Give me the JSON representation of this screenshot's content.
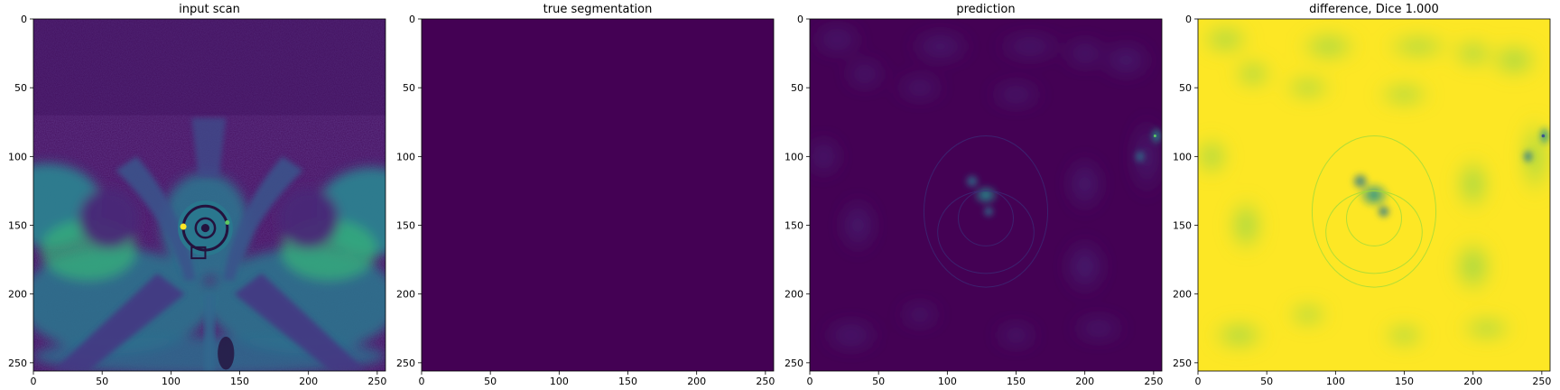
{
  "colors": {
    "viridis_dark": "#440154",
    "viridis_teal": "#21918c",
    "viridis_green": "#5ec962",
    "viridis_yellow": "#fde725",
    "axis": "#000000",
    "background": "#ffffff"
  },
  "chart_data": [
    {
      "type": "heatmap",
      "title": "input scan",
      "colormap": "viridis",
      "content": "mri-axial-pelvis",
      "xlim": [
        0,
        256
      ],
      "ylim": [
        256,
        0
      ],
      "xticks": [
        0,
        50,
        100,
        150,
        200,
        250
      ],
      "yticks": [
        0,
        50,
        100,
        150,
        200,
        250
      ],
      "grid": false
    },
    {
      "type": "heatmap",
      "title": "true segmentation",
      "colormap": "viridis",
      "content": "uniform-zero",
      "xlim": [
        0,
        256
      ],
      "ylim": [
        256,
        0
      ],
      "xticks": [
        0,
        50,
        100,
        150,
        200,
        250
      ],
      "yticks": [
        0,
        50,
        100,
        150,
        200,
        250
      ],
      "grid": false
    },
    {
      "type": "heatmap",
      "title": "prediction",
      "colormap": "viridis",
      "content": "faint-prediction",
      "xlim": [
        0,
        256
      ],
      "ylim": [
        256,
        0
      ],
      "xticks": [
        0,
        50,
        100,
        150,
        200,
        250
      ],
      "yticks": [
        0,
        50,
        100,
        150,
        200,
        250
      ],
      "grid": false
    },
    {
      "type": "heatmap",
      "title": "difference, Dice 1.000",
      "colormap": "viridis",
      "content": "difference-map",
      "xlim": [
        0,
        256
      ],
      "ylim": [
        256,
        0
      ],
      "xticks": [
        0,
        50,
        100,
        150,
        200,
        250
      ],
      "yticks": [
        0,
        50,
        100,
        150,
        200,
        250
      ],
      "grid": false
    }
  ]
}
